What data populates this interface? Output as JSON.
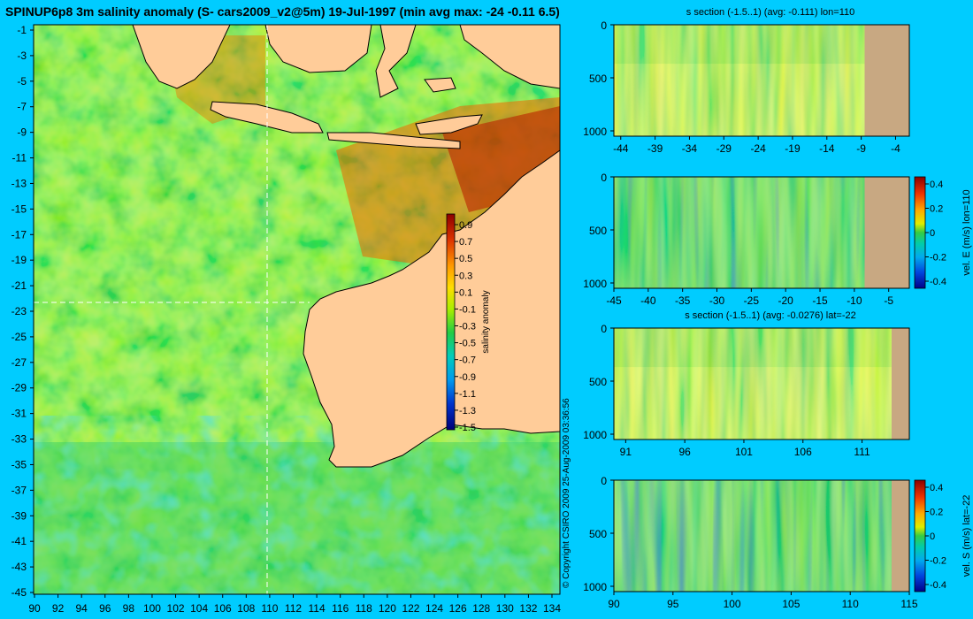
{
  "main_title": "SPINUP6p8 3m salinity anomaly (S- cars2009_v2@5m) 19-Jul-1997 (min avg max: -24 -0.11 6.5)",
  "copyright": "© Copyright CSIRO 2009  25-Aug-2009 03:36:56",
  "colors": {
    "background": "#00ccff",
    "land": "#ffcc99",
    "section_land": "#c8a882",
    "ocean_base": "#66dd22"
  },
  "map": {
    "lat_ticks": [
      "-1",
      "-3",
      "-5",
      "-7",
      "-9",
      "-11",
      "-13",
      "-15",
      "-17",
      "-19",
      "-21",
      "-23",
      "-25",
      "-27",
      "-29",
      "-31",
      "-33",
      "-35",
      "-37",
      "-39",
      "-41",
      "-43",
      "-45"
    ],
    "lon_ticks": [
      "90",
      "92",
      "94",
      "96",
      "98",
      "100",
      "102",
      "104",
      "106",
      "108",
      "110",
      "112",
      "114",
      "116",
      "118",
      "120",
      "122",
      "124",
      "126",
      "128",
      "130",
      "132",
      "134"
    ],
    "crosshair": {
      "lon": 110,
      "lat": -22
    },
    "colorbar": {
      "label": "salinity anomaly",
      "ticks": [
        "0.9",
        "0.7",
        "0.5",
        "0.3",
        "0.1",
        "-0.1",
        "-0.3",
        "-0.5",
        "-0.7",
        "-0.9",
        "-1.1",
        "-1.3",
        "-1.5"
      ]
    }
  },
  "sections": [
    {
      "title": "s section (-1.5..1) (avg: -0.111) lon=110",
      "y_ticks": [
        "0",
        "500",
        "1000"
      ],
      "x_ticks": [
        "-44",
        "-39",
        "-34",
        "-29",
        "-24",
        "-19",
        "-14",
        "-9",
        "-4"
      ],
      "x_range": [
        -45,
        -2
      ],
      "land_from": -8.5
    },
    {
      "title": "",
      "y_ticks": [
        "0",
        "500",
        "1000"
      ],
      "x_ticks": [
        "-45",
        "-40",
        "-35",
        "-30",
        "-25",
        "-20",
        "-15",
        "-10",
        "-5"
      ],
      "x_range": [
        -45,
        -2
      ],
      "land_from": -8.5,
      "colorbar": {
        "label": "vel. E (m/s) lon=110",
        "ticks": [
          "0.4",
          "0.2",
          "0",
          "-0.2",
          "-0.4"
        ]
      }
    },
    {
      "title": "s section (-1.5..1) (avg: -0.0276) lat=-22",
      "y_ticks": [
        "0",
        "500",
        "1000"
      ],
      "x_ticks": [
        "91",
        "96",
        "101",
        "106",
        "111"
      ],
      "x_range": [
        90,
        115
      ],
      "land_from": 113.5
    },
    {
      "title": "",
      "y_ticks": [
        "0",
        "500",
        "1000"
      ],
      "x_ticks": [
        "90",
        "95",
        "100",
        "105",
        "110",
        "115"
      ],
      "x_range": [
        90,
        115
      ],
      "land_from": 113.5,
      "colorbar": {
        "label": "vel. S (m/s) lat=-22",
        "ticks": [
          "0.4",
          "0.2",
          "0",
          "-0.2",
          "-0.4"
        ]
      }
    }
  ]
}
